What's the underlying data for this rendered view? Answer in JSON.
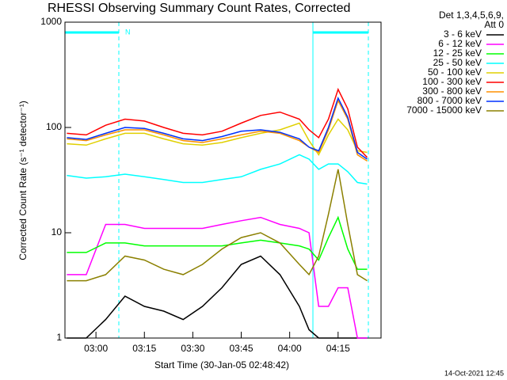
{
  "chart_data": {
    "type": "line",
    "title": "RHESSI Observing Summary Count Rates, Corrected",
    "x_label": "Start Time (30-Jan-05 02:48:42)",
    "y_label": "Corrected Count Rate (s⁻¹ detector⁻¹)",
    "legend_header": [
      "Det 1,3,4,5,6,9,",
      "Att 0"
    ],
    "annotation": "N",
    "footer": "14-Oct-2021 12:45",
    "log_y": true,
    "legend": "right",
    "xlim": [
      170.4,
      268.3
    ],
    "ylim": [
      1,
      1000
    ],
    "xticks": [
      {
        "value": 180,
        "label": "03:00"
      },
      {
        "value": 195,
        "label": "03:15"
      },
      {
        "value": 210,
        "label": "03:30"
      },
      {
        "value": 225,
        "label": "03:45"
      },
      {
        "value": 240,
        "label": "04:00"
      },
      {
        "value": 255,
        "label": "04:15"
      }
    ],
    "yticks": [
      1,
      10,
      100,
      1000
    ],
    "x": [
      171,
      177,
      183,
      189,
      195,
      201,
      207,
      213,
      219,
      225,
      231,
      237,
      243,
      246,
      249,
      252,
      255,
      258,
      261,
      264
    ],
    "series": [
      {
        "name": "3 - 6 keV",
        "color": "#000000",
        "values": [
          1,
          1,
          1.5,
          2.5,
          2,
          1.8,
          1.5,
          2,
          3,
          5,
          6,
          4,
          2,
          1.2,
          1,
          1,
          1,
          1,
          1,
          1
        ]
      },
      {
        "name": "6 - 12 keV",
        "color": "#ff00ff",
        "values": [
          4,
          4,
          12,
          12,
          11,
          11,
          11,
          11,
          12,
          13,
          14,
          12,
          11,
          10,
          2,
          2,
          3,
          3,
          1,
          1
        ]
      },
      {
        "name": "12 - 25 keV",
        "color": "#00ff00",
        "values": [
          6.5,
          6.5,
          8,
          8,
          7.5,
          7.5,
          7.5,
          7.5,
          7.5,
          8,
          8.5,
          8,
          7.5,
          7,
          5.5,
          9,
          14,
          7,
          4.5,
          4.5
        ]
      },
      {
        "name": "25 - 50 keV",
        "color": "#00ffff",
        "values": [
          35,
          33,
          34,
          36,
          34,
          32,
          30,
          30,
          32,
          34,
          40,
          45,
          55,
          50,
          40,
          45,
          45,
          38,
          30,
          29
        ]
      },
      {
        "name": "50 - 100 keV",
        "color": "#e0d000",
        "values": [
          70,
          68,
          78,
          88,
          88,
          78,
          70,
          68,
          72,
          80,
          88,
          95,
          110,
          75,
          55,
          85,
          120,
          95,
          60,
          58
        ]
      },
      {
        "name": "100 - 300 keV",
        "color": "#ff0000",
        "values": [
          88,
          85,
          105,
          120,
          115,
          100,
          88,
          85,
          92,
          110,
          130,
          140,
          120,
          95,
          80,
          120,
          230,
          150,
          65,
          52
        ]
      },
      {
        "name": "300 - 800 keV",
        "color": "#ff9000",
        "values": [
          78,
          75,
          85,
          95,
          95,
          85,
          75,
          72,
          78,
          85,
          92,
          88,
          75,
          65,
          58,
          95,
          180,
          120,
          55,
          48
        ]
      },
      {
        "name": "800 - 7000 keV",
        "color": "#0030ff",
        "values": [
          80,
          77,
          88,
          100,
          98,
          88,
          78,
          75,
          82,
          92,
          95,
          90,
          78,
          65,
          60,
          100,
          190,
          125,
          58,
          50
        ]
      },
      {
        "name": "7000 - 15000 keV",
        "color": "#8b8000",
        "values": [
          3.5,
          3.5,
          4,
          6,
          5.5,
          4.5,
          4,
          5,
          7,
          9,
          10,
          8,
          5,
          4,
          6,
          15,
          40,
          12,
          4,
          3.5
        ]
      }
    ]
  }
}
